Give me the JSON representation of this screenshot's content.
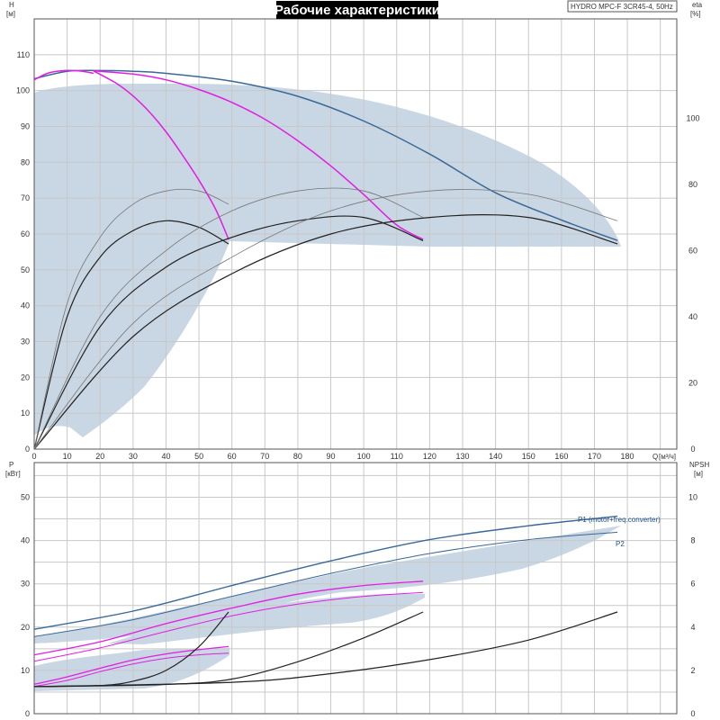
{
  "header": {
    "title": "Рабочие характеристики",
    "model": "HYDRO MPC-F 3CR45-4, 50Hz"
  },
  "colors": {
    "band": "#c9d6e3",
    "max_curve": "#3b6896",
    "speed_curve": "#e21ee2",
    "eff_curve": "#222222",
    "eff_thin": "#777777",
    "power_curve": "#3b6896"
  },
  "chart_data": [
    {
      "type": "line",
      "name": "head",
      "ylabel": "H",
      "yunit": "[м]",
      "y2label": "eta",
      "y2unit": "[%]",
      "xlabel": "Q",
      "xunit": "[м³/ч]",
      "xlim": [
        0,
        195
      ],
      "ylim": [
        0,
        120
      ],
      "y2lim": [
        0,
        130
      ],
      "x_ticks": [
        0,
        10,
        20,
        30,
        40,
        50,
        60,
        70,
        80,
        90,
        100,
        110,
        120,
        130,
        140,
        150,
        160,
        170,
        180
      ],
      "y_ticks": [
        0,
        10,
        20,
        30,
        40,
        50,
        60,
        70,
        80,
        90,
        100,
        110
      ],
      "y2_ticks": [
        0,
        20,
        40,
        60,
        80,
        100
      ],
      "grid": true,
      "series": [
        {
          "role": "max",
          "x": [
            0,
            10,
            20,
            30,
            40,
            60,
            80,
            100,
            120,
            140,
            160,
            177
          ],
          "y": [
            103.3,
            105.4,
            105.6,
            105.4,
            104.8,
            102.6,
            98.4,
            91.5,
            82.3,
            71.5,
            63.9,
            58.2
          ]
        },
        {
          "role": "speed",
          "x": [
            0,
            4,
            8,
            12,
            16,
            18
          ],
          "y": [
            103,
            104.8,
            105.5,
            105.6,
            105.2,
            104.8
          ]
        },
        {
          "role": "speed",
          "x": [
            18,
            25,
            30,
            35,
            40,
            45,
            50,
            55,
            59
          ],
          "y": [
            105.5,
            102,
            98.5,
            94,
            88.5,
            82,
            75,
            67,
            58.5
          ]
        },
        {
          "role": "speed",
          "x": [
            18,
            30,
            40,
            50,
            60,
            70,
            80,
            90,
            100,
            110,
            118
          ],
          "y": [
            105.5,
            104.6,
            103,
            100.3,
            96.7,
            92,
            86,
            79,
            71,
            62.5,
            58.5
          ]
        }
      ],
      "efficiency": [
        {
          "role": "eff",
          "x": [
            0,
            10,
            20,
            30,
            40,
            50,
            59
          ],
          "y": [
            0,
            40,
            58,
            66,
            69,
            67,
            62
          ]
        },
        {
          "role": "eff",
          "x": [
            0,
            20,
            40,
            60,
            80,
            100,
            118
          ],
          "y": [
            0,
            37,
            55,
            64,
            69,
            70,
            63
          ]
        },
        {
          "role": "eff",
          "x": [
            0,
            30,
            60,
            90,
            120,
            150,
            177
          ],
          "y": [
            0,
            34,
            53,
            65,
            70,
            70,
            62
          ]
        },
        {
          "role": "eff_thin",
          "x": [
            0,
            10,
            20,
            30,
            40,
            50,
            59
          ],
          "y": [
            0,
            44,
            64,
            74,
            78,
            78,
            74
          ]
        },
        {
          "role": "eff_thin",
          "x": [
            0,
            20,
            40,
            60,
            80,
            100,
            118
          ],
          "y": [
            0,
            40,
            60,
            72,
            78,
            78,
            70
          ]
        },
        {
          "role": "eff_thin",
          "x": [
            0,
            30,
            60,
            90,
            120,
            150,
            177
          ],
          "y": [
            0,
            38,
            58,
            72,
            78,
            77,
            69
          ]
        }
      ]
    },
    {
      "type": "line",
      "name": "power",
      "ylabel": "P",
      "yunit": "[кВт]",
      "y2label": "NPSH",
      "y2unit": "[м]",
      "xlim": [
        0,
        195
      ],
      "ylim": [
        0,
        58
      ],
      "y2lim": [
        0,
        11.6
      ],
      "y_ticks": [
        0,
        10,
        20,
        30,
        40,
        50
      ],
      "y2_ticks": [
        0,
        2,
        4,
        6,
        8,
        10
      ],
      "legend": [
        "P1 (motor+freq.converter)",
        "P2"
      ],
      "series": [
        {
          "role": "p1",
          "x": [
            0,
            30,
            60,
            90,
            120,
            150,
            177
          ],
          "y": [
            19.5,
            23.7,
            29.6,
            35.3,
            40.2,
            43.4,
            45.6
          ]
        },
        {
          "role": "p2",
          "x": [
            0,
            30,
            60,
            90,
            120,
            150,
            177
          ],
          "y": [
            17.8,
            21.7,
            27.1,
            32.4,
            37.0,
            40.2,
            41.9
          ]
        },
        {
          "role": "p1_speed",
          "x": [
            0,
            20,
            40,
            60,
            80,
            100,
            118
          ],
          "y": [
            13.6,
            16.6,
            20.8,
            24.4,
            27.6,
            29.6,
            30.6
          ]
        },
        {
          "role": "p2_speed",
          "x": [
            0,
            20,
            40,
            60,
            80,
            100,
            118
          ],
          "y": [
            12.1,
            15.2,
            19.0,
            22.6,
            25.3,
            27.1,
            28.0
          ]
        },
        {
          "role": "p1_speed",
          "x": [
            0,
            10,
            20,
            30,
            40,
            50,
            59
          ],
          "y": [
            6.8,
            8.5,
            10.5,
            12.4,
            13.8,
            14.8,
            15.5
          ]
        },
        {
          "role": "p2_speed",
          "x": [
            0,
            10,
            20,
            30,
            40,
            50,
            59
          ],
          "y": [
            6.3,
            7.7,
            9.7,
            11.5,
            12.8,
            13.6,
            14.0
          ]
        }
      ],
      "npsh": [
        {
          "x": [
            0,
            20,
            30,
            40,
            50,
            59
          ],
          "y": [
            1.25,
            1.3,
            1.5,
            2.0,
            3.1,
            4.7
          ]
        },
        {
          "x": [
            0,
            40,
            60,
            80,
            100,
            118
          ],
          "y": [
            1.25,
            1.35,
            1.6,
            2.4,
            3.5,
            4.7
          ]
        },
        {
          "x": [
            0,
            60,
            90,
            120,
            150,
            177
          ],
          "y": [
            1.25,
            1.45,
            1.85,
            2.5,
            3.4,
            4.7
          ]
        }
      ]
    }
  ]
}
